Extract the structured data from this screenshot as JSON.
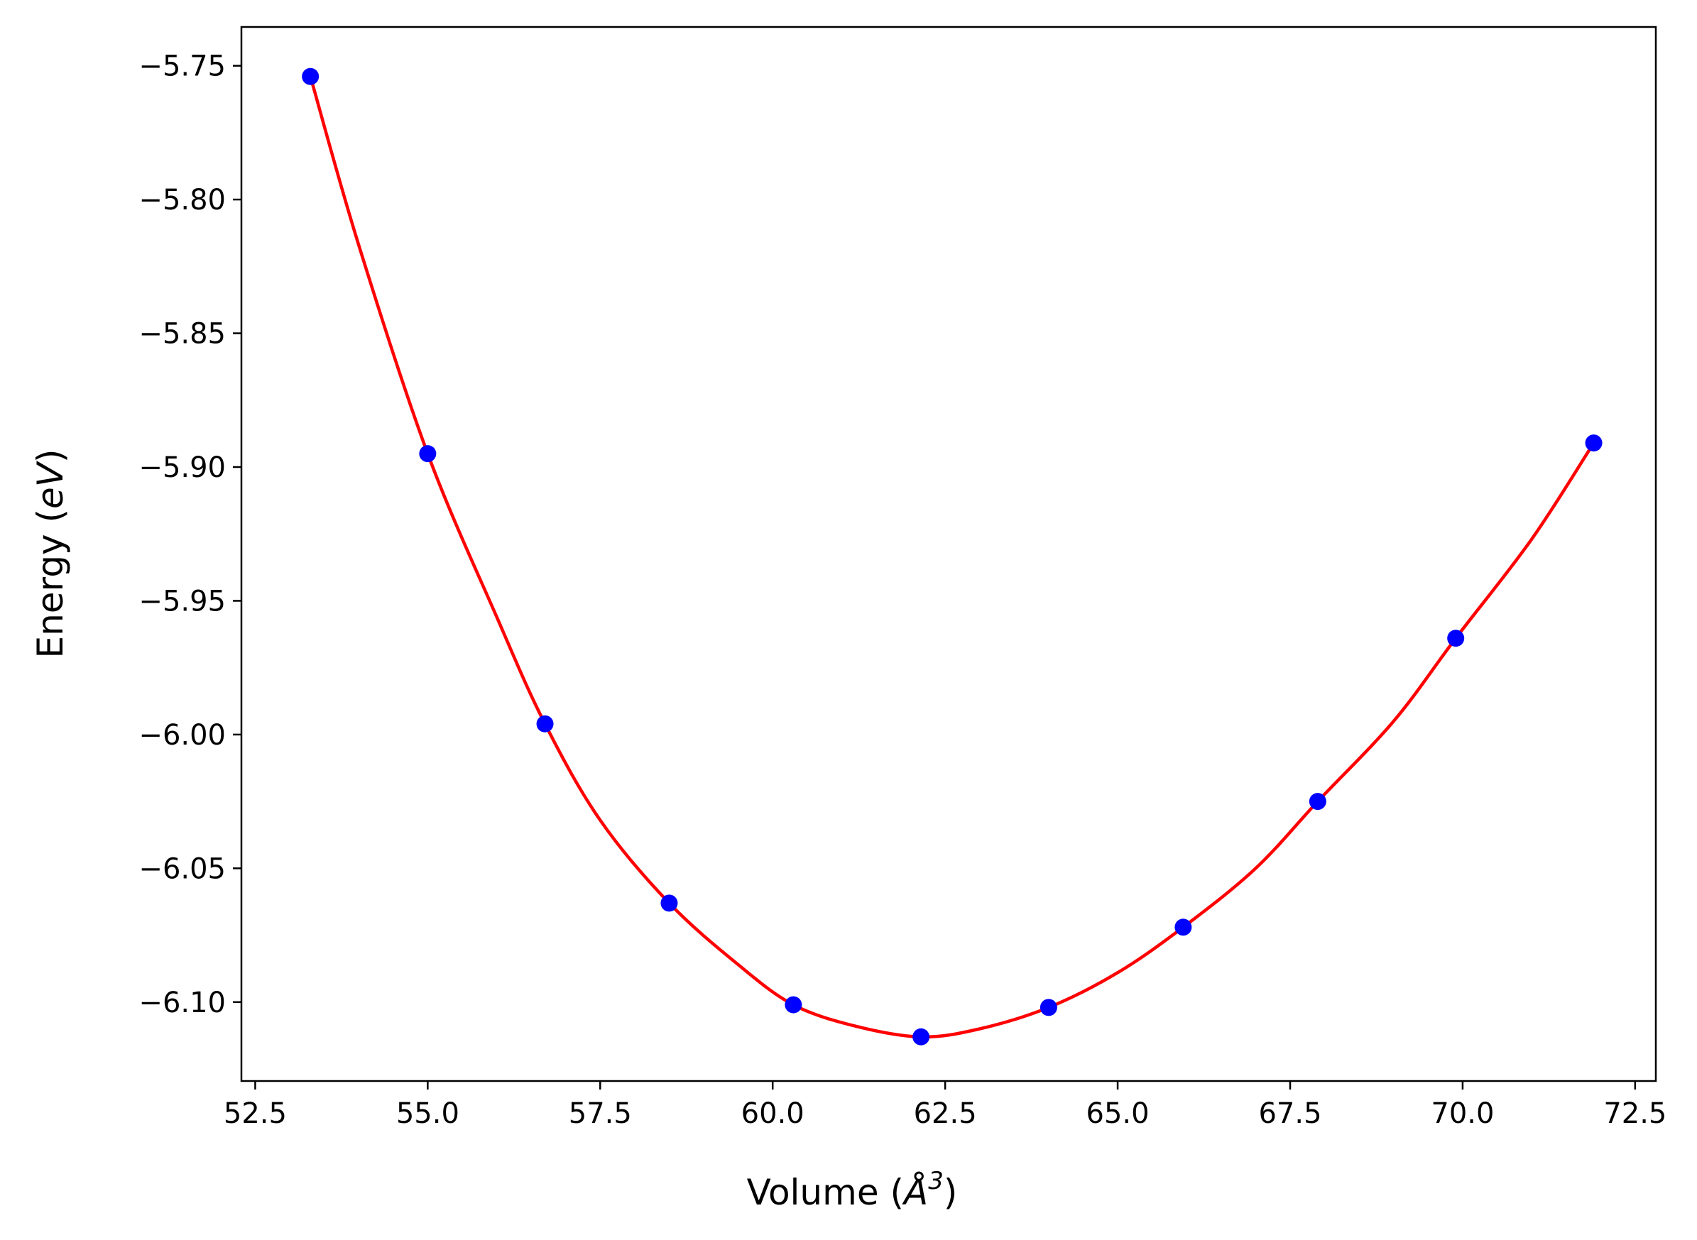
{
  "chart_data": {
    "type": "scatter",
    "title": "",
    "xlabel": "Volume (",
    "xlabel_symbol": "Å",
    "xlabel_exponent": "3",
    "xlabel_suffix": ")",
    "ylabel": "Energy (",
    "ylabel_unit": "eV",
    "ylabel_suffix": ")",
    "xlim": [
      52.3,
      72.8
    ],
    "ylim": [
      -6.1295,
      -5.7355
    ],
    "xticks": [
      52.5,
      55.0,
      57.5,
      60.0,
      62.5,
      65.0,
      67.5,
      70.0,
      72.5
    ],
    "xtick_labels": [
      "52.5",
      "55.0",
      "57.5",
      "60.0",
      "62.5",
      "65.0",
      "67.5",
      "70.0",
      "72.5"
    ],
    "yticks": [
      -5.75,
      -5.8,
      -5.85,
      -5.9,
      -5.95,
      -6.0,
      -6.05,
      -6.1
    ],
    "ytick_labels": [
      "−5.75",
      "−5.80",
      "−5.85",
      "−5.90",
      "−5.95",
      "−6.00",
      "−6.05",
      "−6.10"
    ],
    "grid": false,
    "series": [
      {
        "kind": "points",
        "color": "#0000ff",
        "x": [
          53.3,
          55.0,
          56.7,
          58.5,
          60.3,
          62.15,
          64.0,
          65.95,
          67.9,
          69.9,
          71.9
        ],
        "y": [
          -5.754,
          -5.895,
          -5.996,
          -6.063,
          -6.101,
          -6.113,
          -6.102,
          -6.072,
          -6.025,
          -5.964,
          -5.891
        ]
      },
      {
        "kind": "fit-line",
        "color": "#ff0000",
        "x": [
          53.3,
          54.0,
          55.0,
          56.0,
          56.7,
          57.5,
          58.5,
          59.5,
          60.3,
          61.2,
          62.15,
          63.0,
          64.0,
          65.0,
          65.95,
          67.0,
          67.9,
          69.0,
          69.9,
          71.0,
          71.9
        ],
        "y": [
          -5.754,
          -5.817,
          -5.895,
          -5.956,
          -5.996,
          -6.032,
          -6.063,
          -6.086,
          -6.101,
          -6.109,
          -6.113,
          -6.11,
          -6.102,
          -6.089,
          -6.072,
          -6.05,
          -6.025,
          -5.995,
          -5.964,
          -5.927,
          -5.891
        ]
      }
    ]
  }
}
